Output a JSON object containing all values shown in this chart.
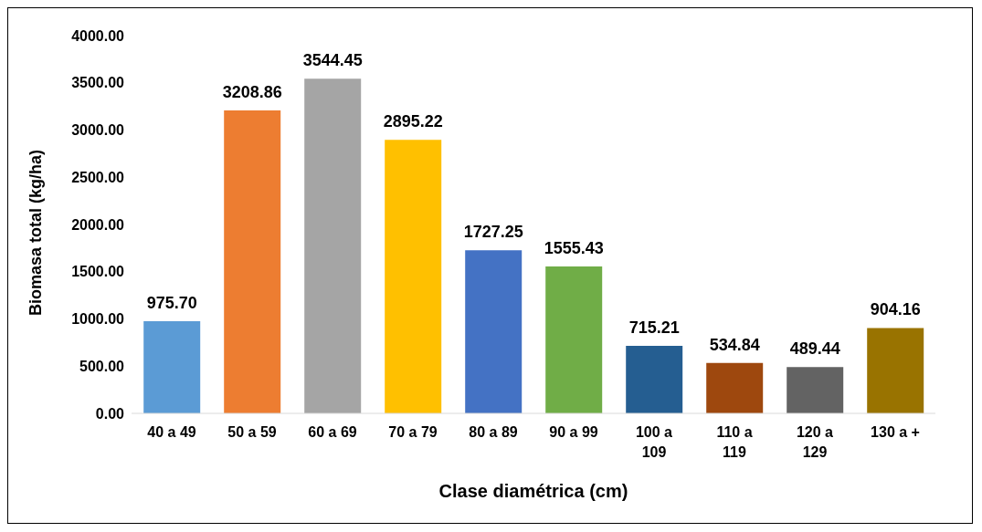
{
  "chart_data": {
    "type": "bar",
    "xlabel": "Clase diamétrica (cm)",
    "ylabel": "Biomasa total (kg/ha)",
    "categories": [
      "40 a 49",
      "50 a 59",
      "60 a 69",
      "70 a 79",
      "80 a 89",
      "90 a 99",
      "100 a 109",
      "110 a 119",
      "120 a 129",
      "130 a +"
    ],
    "values": [
      975.7,
      3208.86,
      3544.45,
      2895.22,
      1727.25,
      1555.43,
      715.21,
      534.84,
      489.44,
      904.16
    ],
    "value_labels": [
      "975.70",
      "3208.86",
      "3544.45",
      "2895.22",
      "1727.25",
      "1555.43",
      "715.21",
      "534.84",
      "489.44",
      "904.16"
    ],
    "colors": [
      "#5b9bd5",
      "#ed7d31",
      "#a5a5a5",
      "#ffc000",
      "#4472c4",
      "#70ad47",
      "#255e91",
      "#9e480e",
      "#636363",
      "#997300"
    ],
    "ylim": [
      0,
      4000
    ],
    "yticks": [
      {
        "value": 0,
        "label": "0.00"
      },
      {
        "value": 500,
        "label": "500.00"
      },
      {
        "value": 1000,
        "label": "1000.00"
      },
      {
        "value": 1500,
        "label": "1500.00"
      },
      {
        "value": 2000,
        "label": "2000.00"
      },
      {
        "value": 2500,
        "label": "2500.00"
      },
      {
        "value": 3000,
        "label": "3000.00"
      },
      {
        "value": 3500,
        "label": "3500.00"
      },
      {
        "value": 4000,
        "label": "4000.00"
      }
    ],
    "grid": false,
    "legend": false
  }
}
